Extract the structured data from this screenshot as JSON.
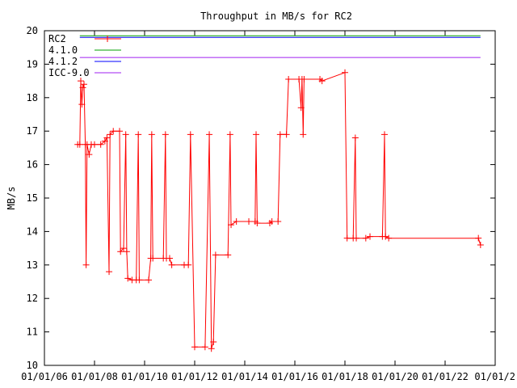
{
  "chart_data": {
    "type": "line",
    "title": "Throughput in MB/s for RC2",
    "xlabel": "",
    "ylabel": "MB/s",
    "ylim": [
      10,
      20
    ],
    "xlim": [
      "2006-01-01",
      "2024-01-01"
    ],
    "x_ticks": [
      "01/01/06",
      "01/01/08",
      "01/01/10",
      "01/01/12",
      "01/01/14",
      "01/01/16",
      "01/01/18",
      "01/01/20",
      "01/01/22",
      "01/01/2"
    ],
    "y_ticks": [
      "10",
      "11",
      "12",
      "13",
      "14",
      "15",
      "16",
      "17",
      "18",
      "19",
      "20"
    ],
    "grid": false,
    "legend_position": "top-left",
    "series": [
      {
        "name": "RC2",
        "color": "#ff0000",
        "marker": "plus",
        "points": [
          [
            "2007-05-01",
            16.6
          ],
          [
            "2007-06-01",
            16.6
          ],
          [
            "2007-06-15",
            18.5
          ],
          [
            "2007-07-01",
            17.8
          ],
          [
            "2007-07-15",
            18.3
          ],
          [
            "2007-08-01",
            18.4
          ],
          [
            "2007-08-20",
            16.6
          ],
          [
            "2007-09-01",
            13.0
          ],
          [
            "2007-09-15",
            16.6
          ],
          [
            "2007-10-15",
            16.3
          ],
          [
            "2007-11-15",
            16.6
          ],
          [
            "2008-01-01",
            16.6
          ],
          [
            "2008-04-01",
            16.6
          ],
          [
            "2008-06-01",
            16.7
          ],
          [
            "2008-07-01",
            16.8
          ],
          [
            "2008-08-01",
            12.8
          ],
          [
            "2008-08-15",
            16.9
          ],
          [
            "2008-10-01",
            17.0
          ],
          [
            "2009-01-01",
            17.0
          ],
          [
            "2009-01-15",
            13.4
          ],
          [
            "2009-03-01",
            13.5
          ],
          [
            "2009-04-01",
            16.9
          ],
          [
            "2009-04-15",
            13.4
          ],
          [
            "2009-05-01",
            12.6
          ],
          [
            "2009-07-01",
            12.55
          ],
          [
            "2009-09-01",
            12.55
          ],
          [
            "2009-10-01",
            16.9
          ],
          [
            "2009-10-15",
            12.55
          ],
          [
            "2010-03-01",
            12.55
          ],
          [
            "2010-04-01",
            13.2
          ],
          [
            "2010-04-15",
            16.9
          ],
          [
            "2010-05-01",
            13.2
          ],
          [
            "2010-10-01",
            13.2
          ],
          [
            "2010-11-01",
            16.9
          ],
          [
            "2010-11-15",
            13.2
          ],
          [
            "2011-01-01",
            13.2
          ],
          [
            "2011-02-01",
            13.0
          ],
          [
            "2011-08-01",
            13.0
          ],
          [
            "2011-10-01",
            13.0
          ],
          [
            "2011-11-01",
            16.9
          ],
          [
            "2012-01-01",
            10.55
          ],
          [
            "2012-06-01",
            10.55
          ],
          [
            "2012-08-01",
            16.9
          ],
          [
            "2012-09-01",
            10.5
          ],
          [
            "2012-10-01",
            10.7
          ],
          [
            "2012-11-01",
            13.3
          ],
          [
            "2013-05-01",
            13.3
          ],
          [
            "2013-06-01",
            16.9
          ],
          [
            "2013-06-15",
            14.2
          ],
          [
            "2013-09-01",
            14.3
          ],
          [
            "2014-03-01",
            14.3
          ],
          [
            "2014-06-01",
            14.3
          ],
          [
            "2014-06-15",
            16.9
          ],
          [
            "2014-07-01",
            14.25
          ],
          [
            "2015-01-01",
            14.25
          ],
          [
            "2015-02-01",
            14.3
          ],
          [
            "2015-05-01",
            14.3
          ],
          [
            "2015-06-01",
            16.9
          ],
          [
            "2015-09-01",
            16.9
          ],
          [
            "2015-10-01",
            18.55
          ],
          [
            "2016-03-01",
            18.55
          ],
          [
            "2016-04-01",
            17.7
          ],
          [
            "2016-04-15",
            18.55
          ],
          [
            "2016-05-01",
            16.9
          ],
          [
            "2016-05-15",
            18.55
          ],
          [
            "2017-01-01",
            18.55
          ],
          [
            "2017-02-01",
            18.5
          ],
          [
            "2018-01-01",
            18.75
          ],
          [
            "2018-02-01",
            13.8
          ],
          [
            "2018-05-01",
            13.8
          ],
          [
            "2018-06-01",
            16.8
          ],
          [
            "2018-06-15",
            13.8
          ],
          [
            "2018-11-01",
            13.8
          ],
          [
            "2019-01-01",
            13.85
          ],
          [
            "2019-07-01",
            13.85
          ],
          [
            "2019-08-01",
            16.9
          ],
          [
            "2019-08-15",
            13.85
          ],
          [
            "2019-10-01",
            13.8
          ],
          [
            "2023-05-01",
            13.8
          ],
          [
            "2023-06-01",
            13.6
          ]
        ]
      },
      {
        "name": "4.1.0",
        "color": "#00a000",
        "marker": "none",
        "points": [
          [
            "2007-06-01",
            19.85
          ],
          [
            "2023-06-01",
            19.85
          ]
        ]
      },
      {
        "name": "4.1.2",
        "color": "#0000ff",
        "marker": "none",
        "points": [
          [
            "2007-06-01",
            19.8
          ],
          [
            "2023-06-01",
            19.8
          ]
        ]
      },
      {
        "name": "ICC-9.0",
        "color": "#a020f0",
        "marker": "none",
        "points": [
          [
            "2007-06-01",
            19.2
          ],
          [
            "2023-06-01",
            19.2
          ]
        ]
      }
    ]
  }
}
